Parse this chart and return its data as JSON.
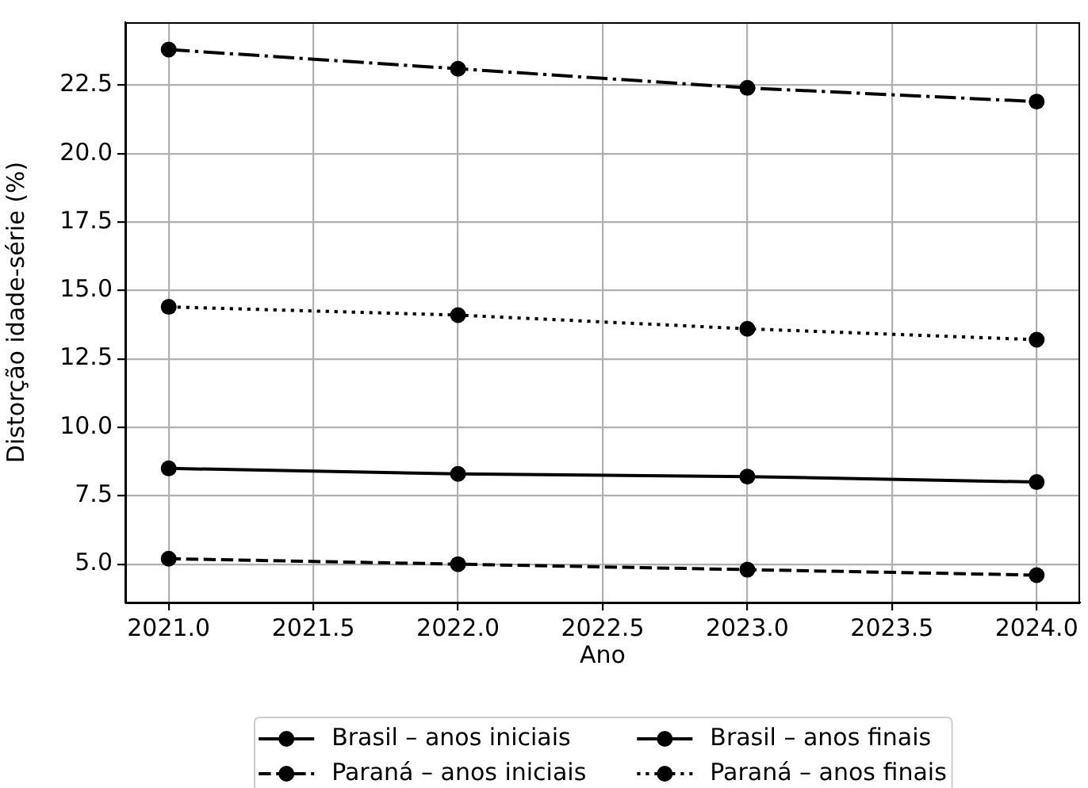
{
  "chart_data": {
    "type": "line",
    "xlabel": "Ano",
    "ylabel": "Distorção idade-série (%)",
    "x": [
      2021,
      2022,
      2023,
      2024
    ],
    "series": [
      {
        "name": "Brasil – anos iniciais",
        "color": "#000000",
        "values": [
          8.5,
          8.3,
          8.2,
          8.0
        ],
        "line_style": "solid"
      },
      {
        "name": "Paraná – anos iniciais",
        "color": "#000000",
        "values": [
          5.2,
          5.0,
          4.8,
          4.6
        ],
        "line_style": "dashed"
      },
      {
        "name": "Brasil – anos finais",
        "color": "#000000",
        "values": [
          23.8,
          23.1,
          22.4,
          21.9
        ],
        "line_style": "dashdot"
      },
      {
        "name": "Paraná – anos finais",
        "color": "#000000",
        "values": [
          14.4,
          14.1,
          13.6,
          13.2
        ],
        "line_style": "dotted"
      }
    ],
    "xlim": [
      2020.85,
      2024.15
    ],
    "xticks": [
      {
        "value": 2021,
        "label": "2021.0"
      },
      2021.5,
      {
        "value": 2022,
        "label": "2022.0"
      },
      2022.5,
      {
        "value": 2023,
        "label": "2023.0"
      },
      2023.5,
      {
        "value": 2024,
        "label": "2024.0"
      }
    ],
    "ylim": [
      3.6,
      24.8
    ],
    "yticks": [
      {
        "value": 5,
        "label": "5.0"
      },
      7.5,
      {
        "value": 10,
        "label": "10.0"
      },
      12.5,
      {
        "value": 15,
        "label": "15.0"
      },
      17.5,
      {
        "value": 20,
        "label": "20.0"
      },
      22.5
    ],
    "grid": true,
    "legend": "bottom",
    "marker": "circle"
  }
}
